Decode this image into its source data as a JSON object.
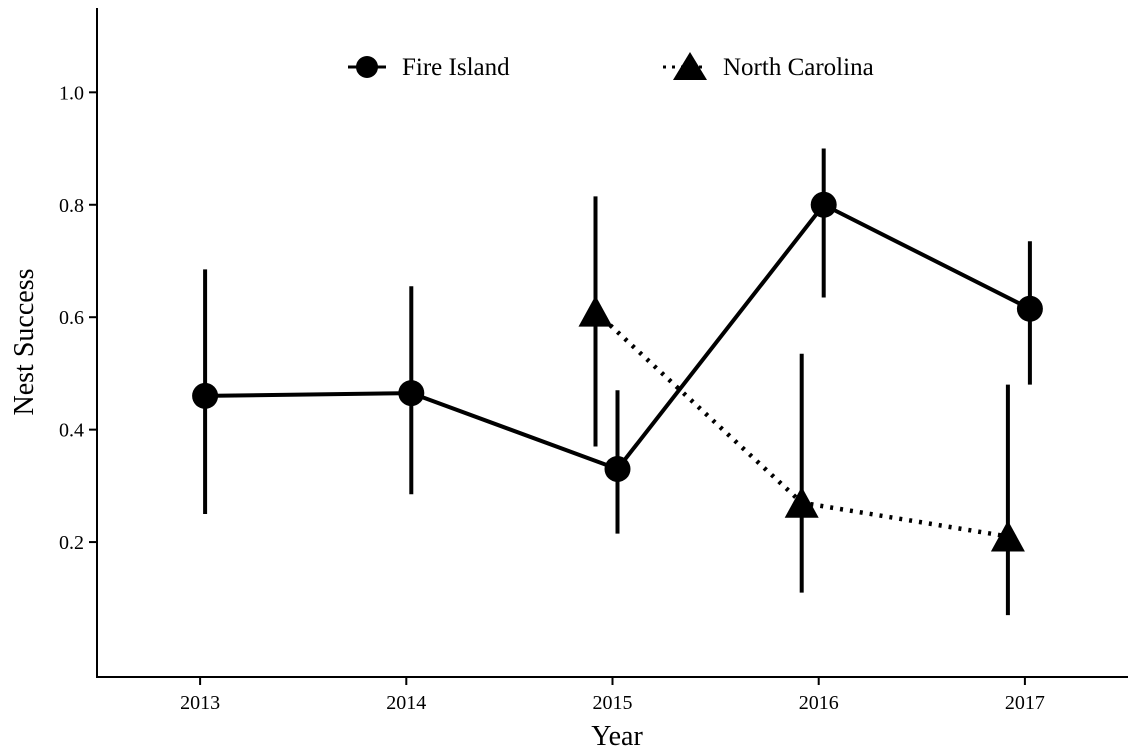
{
  "chart_data": {
    "type": "line",
    "title": "",
    "xlabel": "Year",
    "ylabel": "Nest Success",
    "x": [
      2013,
      2014,
      2015,
      2016,
      2017
    ],
    "xlim": [
      2012.5,
      2017.5
    ],
    "ylim": [
      -0.04,
      1.15
    ],
    "yticks": [
      0.2,
      0.4,
      0.6,
      0.8,
      1.0
    ],
    "ytick_labels": [
      "0.2",
      "0.4",
      "0.6",
      "0.8",
      "1.0"
    ],
    "xtick_labels": [
      "2013",
      "2014",
      "2015",
      "2016",
      "2017"
    ],
    "grid": false,
    "legend_position": "top",
    "series": [
      {
        "name": "Fire Island",
        "marker": "circle",
        "line_style": "solid",
        "x": [
          2013,
          2014,
          2015,
          2016,
          2017
        ],
        "y": [
          0.46,
          0.465,
          0.33,
          0.8,
          0.615
        ],
        "lower": [
          0.25,
          0.285,
          0.215,
          0.635,
          0.48
        ],
        "upper": [
          0.685,
          0.655,
          0.47,
          0.9,
          0.735
        ]
      },
      {
        "name": "North Carolina",
        "marker": "triangle",
        "line_style": "dotted",
        "x": [
          2015,
          2016,
          2017
        ],
        "y": [
          0.61,
          0.27,
          0.21
        ],
        "lower": [
          0.37,
          0.11,
          0.07
        ],
        "upper": [
          0.815,
          0.535,
          0.48
        ]
      }
    ],
    "colors": {
      "line": "#000000",
      "background": "#ffffff"
    }
  }
}
